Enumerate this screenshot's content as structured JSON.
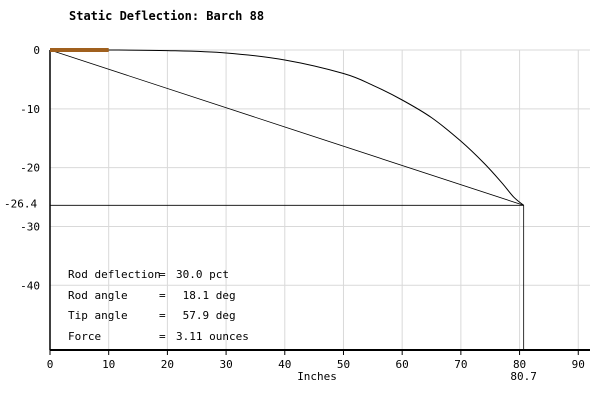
{
  "chart_data": {
    "type": "line",
    "title": "Static Deflection: Barch 88",
    "xlabel": "Inches",
    "ylabel": "",
    "xlim": [
      0,
      92
    ],
    "ylim": [
      -51,
      0
    ],
    "x_ticks": [
      0,
      10,
      20,
      30,
      40,
      50,
      60,
      70,
      80,
      90
    ],
    "y_ticks": [
      0,
      -10,
      -20,
      -30,
      -40
    ],
    "grid": true,
    "rod_curve": {
      "x": [
        0,
        10,
        20,
        30,
        40,
        50,
        55,
        60,
        65,
        70,
        74,
        77,
        79,
        80.7
      ],
      "y": [
        0,
        0,
        -0.1,
        -0.5,
        -1.7,
        -4.0,
        -6.0,
        -8.5,
        -11.5,
        -15.5,
        -19.3,
        -22.6,
        -25.0,
        -26.4
      ]
    },
    "chord_line": {
      "x": [
        0,
        80.7
      ],
      "y": [
        0,
        -26.4
      ]
    },
    "tip_x": 80.7,
    "tip_y": -26.4,
    "tip_x_label": "80.7",
    "tip_y_label": "-26.4",
    "handle": {
      "x_start": 0,
      "x_end": 10,
      "color": "#a0601e"
    },
    "colors": {
      "grid": "#d9d9d9",
      "line": "#000000"
    }
  },
  "stats": [
    {
      "label": "Rod deflection",
      "value": "30.0 pct"
    },
    {
      "label": "Rod angle",
      "value": " 18.1 deg"
    },
    {
      "label": "Tip angle",
      "value": " 57.9 deg"
    },
    {
      "label": "Force",
      "value": "3.11 ounces"
    }
  ]
}
